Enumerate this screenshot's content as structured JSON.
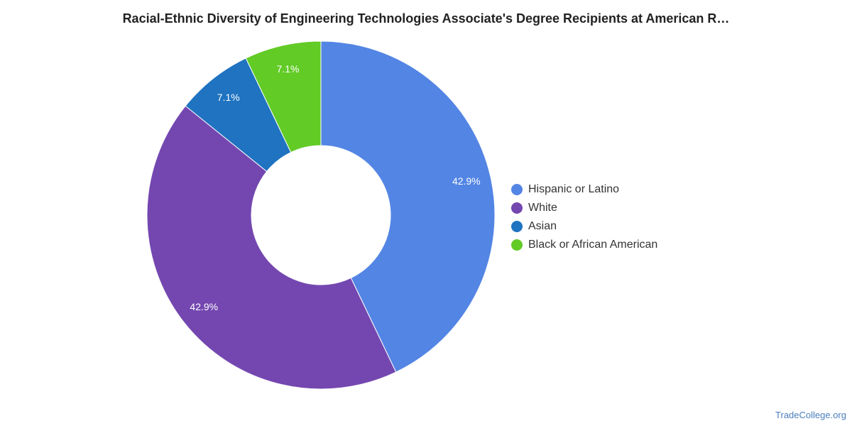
{
  "chart_data": {
    "type": "pie",
    "title": "Racial-Ethnic Diversity of Engineering Technologies Associate's Degree Recipients at American R…",
    "donut": true,
    "legend_position": "right",
    "slices": [
      {
        "label": "Hispanic or Latino",
        "value": 42.9,
        "display": "42.9%",
        "color": "#5385e4"
      },
      {
        "label": "White",
        "value": 42.9,
        "display": "42.9%",
        "color": "#7447b0"
      },
      {
        "label": "Asian",
        "value": 7.1,
        "display": "7.1%",
        "color": "#1f73c0"
      },
      {
        "label": "Black or African American",
        "value": 7.1,
        "display": "7.1%",
        "color": "#62cb26"
      }
    ]
  },
  "source": "TradeCollege.org"
}
